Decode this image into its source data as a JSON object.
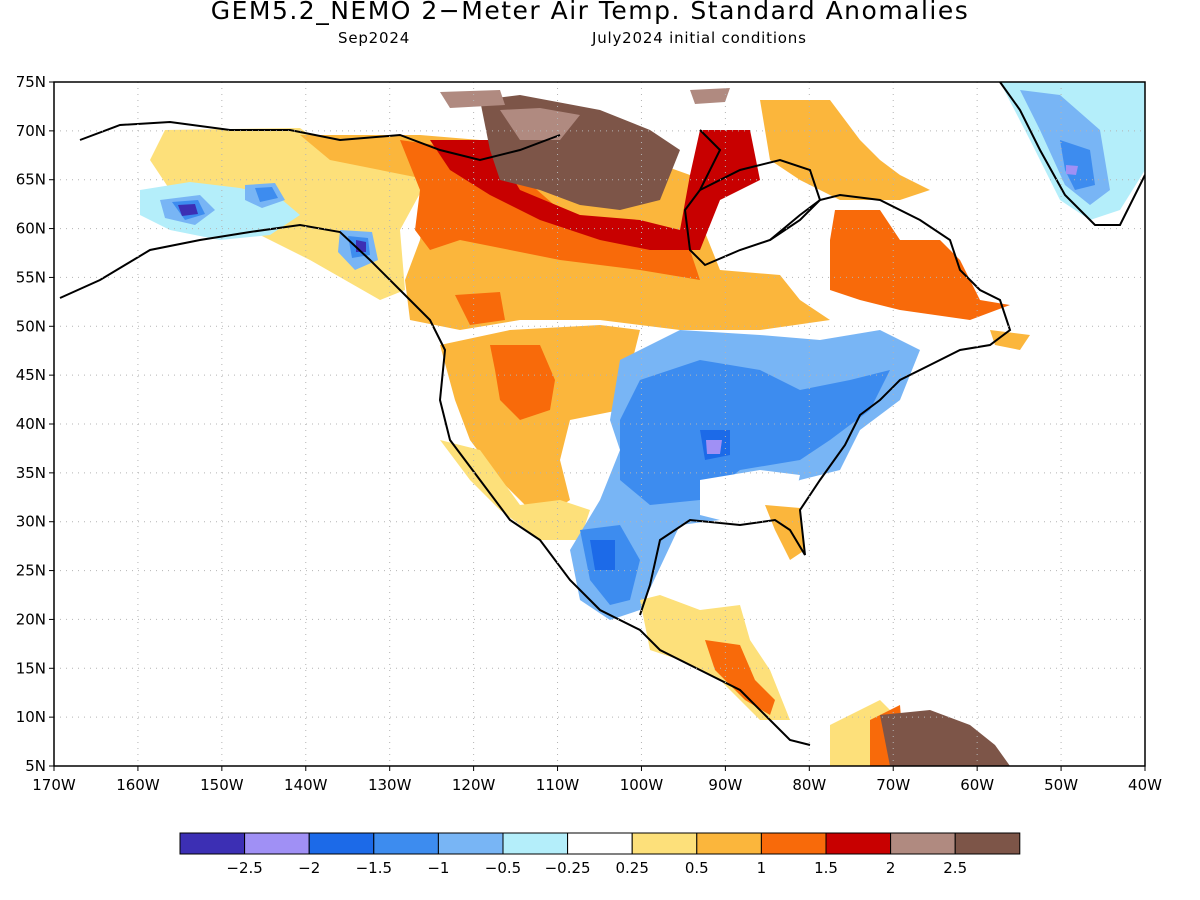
{
  "header": {
    "title": "GEM5.2_NEMO 2−Meter Air Temp. Standard Anomalies",
    "valid_month": "Sep2024",
    "init": "July2024 initial conditions"
  },
  "axes": {
    "lat_labels": [
      "75N",
      "70N",
      "65N",
      "60N",
      "55N",
      "50N",
      "45N",
      "40N",
      "35N",
      "30N",
      "25N",
      "20N",
      "15N",
      "10N",
      "5N"
    ],
    "lon_labels": [
      "170W",
      "160W",
      "150W",
      "140W",
      "130W",
      "120W",
      "110W",
      "100W",
      "90W",
      "80W",
      "70W",
      "60W",
      "50W",
      "40W"
    ]
  },
  "legend": {
    "colors": [
      "#3c2fb4",
      "#a090f5",
      "#1c6ae8",
      "#3d8cef",
      "#78b5f5",
      "#b4eefa",
      "#ffffff",
      "#fde07a",
      "#fbb63c",
      "#f86a0a",
      "#c80000",
      "#b08a80",
      "#7d5548"
    ],
    "labels": [
      "−2.5",
      "−2",
      "−1.5",
      "−1",
      "−0.5",
      "−0.25",
      "0.25",
      "0.5",
      "1",
      "1.5",
      "2",
      "2.5"
    ]
  },
  "colors": {
    "land_outline": "#000000",
    "grid": "#b4b4b4"
  }
}
